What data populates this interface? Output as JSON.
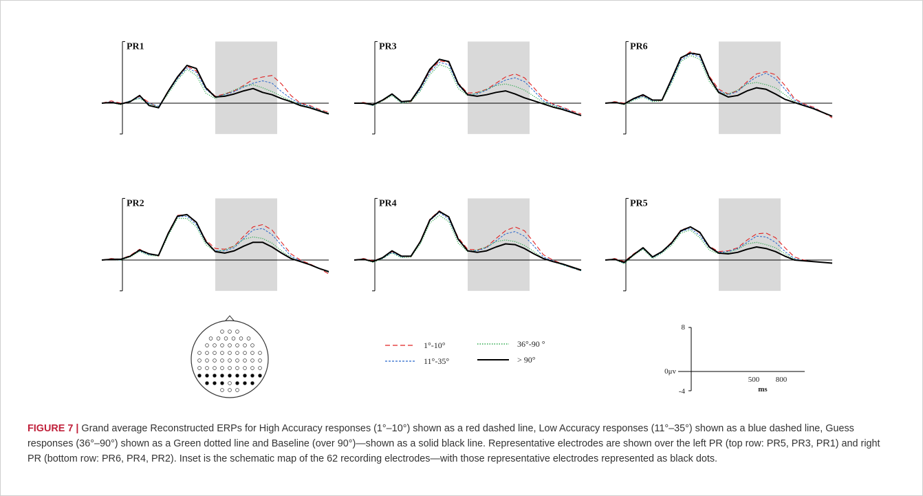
{
  "figure": {
    "label": "FIGURE 7",
    "separator": " | ",
    "caption": "Grand average Reconstructed ERPs for High Accuracy responses (1°–10°) shown as a red dashed line, Low Accuracy responses (11°–35°) shown as a blue dashed line, Guess responses (36°–90°) shown as a Green dotted line and Baseline (over 90°)—shown as a solid black line. Representative electrodes are shown over the left PR (top row: PR5, PR3, PR1) and right PR (bottom row: PR6, PR4, PR2). Inset is the schematic map of the 62 recording electrodes—with those representative electrodes represented as black dots."
  },
  "colors": {
    "high": "#e02020",
    "low": "#2563c9",
    "guess": "#2aa84a",
    "baseline": "#000000",
    "shade": "#d9d9d9",
    "caption_label": "#c0213b"
  },
  "legend": [
    {
      "label": "1°-10°",
      "series": "high",
      "style": "dashed-red"
    },
    {
      "label": "36°-90 °",
      "series": "guess",
      "style": "dotted-green"
    },
    {
      "label": "11°-35°",
      "series": "low",
      "style": "dashed-blue"
    },
    {
      "label": "> 90°",
      "series": "baseline",
      "style": "solid-black"
    }
  ],
  "scale_inset": {
    "y_top": "8",
    "y_zero": "0μv",
    "y_bottom": "-4",
    "x_ticks": [
      "500",
      "800"
    ],
    "x_unit": "ms"
  },
  "head_map": {
    "total_electrodes": 62,
    "representative_electrodes": "black dots"
  },
  "chart_data": [
    {
      "type": "line",
      "title": "PR1",
      "xlim": [
        -100,
        1000
      ],
      "ylim": [
        -4,
        8
      ],
      "shaded_window": [
        450,
        750
      ],
      "series": [
        {
          "key": "high",
          "amps": [
            0,
            0.3,
            0,
            0.2,
            0.9,
            0.1,
            -0.6,
            1.6,
            3.3,
            4.8,
            4.2,
            2.1,
            0.9,
            1.2,
            1.6,
            2.3,
            3.1,
            3.4,
            3.6,
            2.5,
            1.0,
            0,
            -0.3,
            -0.8,
            -1.2
          ]
        },
        {
          "key": "low",
          "amps": [
            0,
            0.2,
            -0.1,
            0.3,
            0.7,
            0.0,
            -0.4,
            1.4,
            3.2,
            4.6,
            4.0,
            1.8,
            0.8,
            1.1,
            1.5,
            2.1,
            2.6,
            2.9,
            2.6,
            1.5,
            0.6,
            -0.1,
            -0.4,
            -0.9,
            -1.3
          ]
        },
        {
          "key": "guess",
          "amps": [
            0,
            0.1,
            -0.2,
            0.3,
            0.6,
            -0.1,
            -0.5,
            1.2,
            3.0,
            4.4,
            3.6,
            1.3,
            0.6,
            1.2,
            1.7,
            2.2,
            2.4,
            2.0,
            1.5,
            0.9,
            0.3,
            -0.2,
            -0.5,
            -0.9,
            -1.3
          ]
        },
        {
          "key": "baseline",
          "amps": [
            0,
            0.1,
            -0.1,
            0.2,
            1.0,
            -0.3,
            -0.6,
            1.5,
            3.4,
            4.9,
            4.5,
            2.0,
            0.8,
            0.9,
            1.2,
            1.6,
            1.9,
            1.4,
            1.1,
            0.6,
            0.2,
            -0.3,
            -0.6,
            -1.0,
            -1.4
          ]
        }
      ]
    },
    {
      "type": "line",
      "title": "PR3",
      "xlim": [
        -100,
        1000
      ],
      "ylim": [
        -4,
        8
      ],
      "shaded_window": [
        450,
        750
      ],
      "series": [
        {
          "key": "high",
          "amps": [
            0,
            0.1,
            -0.2,
            0.3,
            1.2,
            0.2,
            0.2,
            2.0,
            4.2,
            5.5,
            5.3,
            2.6,
            1.3,
            1.4,
            1.8,
            2.6,
            3.4,
            3.8,
            3.3,
            2.0,
            0.6,
            -0.1,
            -0.5,
            -1.0,
            -1.4
          ]
        },
        {
          "key": "low",
          "amps": [
            0,
            0,
            -0.3,
            0.4,
            1.1,
            0.1,
            0.3,
            1.8,
            4.0,
            5.3,
            5.0,
            2.3,
            1.1,
            1.2,
            1.7,
            2.4,
            3.0,
            3.3,
            2.8,
            1.6,
            0.3,
            -0.2,
            -0.6,
            -1.1,
            -1.6
          ]
        },
        {
          "key": "guess",
          "amps": [
            0,
            0,
            -0.3,
            0.3,
            1.0,
            0.0,
            0.2,
            1.6,
            3.7,
            5.0,
            4.6,
            1.9,
            1.0,
            1.3,
            1.8,
            2.3,
            2.5,
            2.2,
            1.7,
            0.9,
            0.1,
            -0.3,
            -0.7,
            -1.2,
            -1.6
          ]
        },
        {
          "key": "baseline",
          "amps": [
            0,
            0,
            -0.2,
            0.4,
            1.2,
            0.2,
            0.3,
            2.1,
            4.4,
            5.7,
            5.4,
            2.5,
            1.1,
            0.9,
            1.1,
            1.4,
            1.6,
            1.2,
            0.7,
            0.3,
            -0.1,
            -0.5,
            -0.8,
            -1.2,
            -1.6
          ]
        }
      ]
    },
    {
      "type": "line",
      "title": "PR6",
      "xlim": [
        -100,
        1000
      ],
      "ylim": [
        -4,
        8
      ],
      "shaded_window": [
        450,
        750
      ],
      "series": [
        {
          "key": "high",
          "amps": [
            0,
            0.2,
            0,
            0.6,
            1.0,
            0.4,
            0.3,
            3.0,
            5.8,
            6.7,
            6.2,
            3.5,
            1.8,
            1.2,
            1.6,
            2.8,
            3.8,
            4.1,
            3.7,
            2.3,
            0.6,
            -0.1,
            -0.5,
            -1.2,
            -1.9
          ]
        },
        {
          "key": "low",
          "amps": [
            0,
            0.1,
            -0.1,
            0.5,
            0.9,
            0.3,
            0.4,
            2.8,
            5.6,
            6.4,
            6.0,
            3.2,
            1.6,
            1.1,
            1.5,
            2.6,
            3.4,
            3.9,
            3.2,
            1.8,
            0.4,
            -0.2,
            -0.6,
            -1.2,
            -1.7
          ]
        },
        {
          "key": "guess",
          "amps": [
            0,
            0.1,
            -0.2,
            0.4,
            0.8,
            0.2,
            0.3,
            2.6,
            5.4,
            6.2,
            5.7,
            2.8,
            1.3,
            1.2,
            1.7,
            2.5,
            2.7,
            2.4,
            2.0,
            1.1,
            0.2,
            -0.3,
            -0.7,
            -1.2,
            -1.7
          ]
        },
        {
          "key": "baseline",
          "amps": [
            0,
            0.1,
            -0.1,
            0.6,
            1.1,
            0.4,
            0.4,
            3.1,
            5.9,
            6.5,
            6.3,
            3.3,
            1.4,
            0.8,
            1.0,
            1.6,
            2.0,
            1.8,
            1.2,
            0.5,
            0.1,
            -0.3,
            -0.7,
            -1.2,
            -1.7
          ]
        }
      ]
    },
    {
      "type": "line",
      "title": "PR2",
      "xlim": [
        -100,
        1000
      ],
      "ylim": [
        -4,
        8
      ],
      "shaded_window": [
        450,
        750
      ],
      "series": [
        {
          "key": "high",
          "amps": [
            0,
            0.2,
            0.1,
            0.6,
            1.4,
            0.8,
            0.5,
            3.5,
            5.8,
            5.9,
            4.8,
            2.6,
            1.5,
            1.4,
            1.8,
            3.1,
            4.3,
            4.6,
            3.9,
            2.3,
            0.8,
            0,
            -0.5,
            -1.1,
            -1.8
          ]
        },
        {
          "key": "low",
          "amps": [
            0,
            0.1,
            0,
            0.5,
            1.2,
            0.7,
            0.6,
            3.3,
            5.6,
            5.7,
            4.6,
            2.3,
            1.2,
            1.2,
            1.6,
            2.8,
            3.9,
            4.1,
            3.3,
            1.9,
            0.5,
            -0.1,
            -0.6,
            -1.1,
            -1.6
          ]
        },
        {
          "key": "guess",
          "amps": [
            0,
            0.1,
            0,
            0.4,
            1.1,
            0.6,
            0.5,
            3.1,
            5.4,
            5.4,
            4.3,
            2.0,
            1.1,
            1.3,
            1.8,
            2.7,
            3.0,
            2.8,
            2.2,
            1.2,
            0.3,
            -0.2,
            -0.6,
            -1.1,
            -1.6
          ]
        },
        {
          "key": "baseline",
          "amps": [
            0,
            0.1,
            0.1,
            0.5,
            1.3,
            0.8,
            0.6,
            3.4,
            5.7,
            5.9,
            4.9,
            2.4,
            1.1,
            0.9,
            1.2,
            1.8,
            2.3,
            2.3,
            1.7,
            0.9,
            0.2,
            -0.2,
            -0.6,
            -1.1,
            -1.5
          ]
        }
      ]
    },
    {
      "type": "line",
      "title": "PR4",
      "xlim": [
        -100,
        1000
      ],
      "ylim": [
        -4,
        8
      ],
      "shaded_window": [
        450,
        750
      ],
      "series": [
        {
          "key": "high",
          "amps": [
            0,
            0.2,
            -0.1,
            0.3,
            1.1,
            0.5,
            0.4,
            2.5,
            5.3,
            6.4,
            5.5,
            2.9,
            1.4,
            1.3,
            1.7,
            2.8,
            3.8,
            4.3,
            3.8,
            2.3,
            0.7,
            0,
            -0.5,
            -1.0,
            -1.4
          ]
        },
        {
          "key": "low",
          "amps": [
            0,
            0.1,
            -0.2,
            0.2,
            1.0,
            0.4,
            0.5,
            2.3,
            5.1,
            6.2,
            5.3,
            2.6,
            1.2,
            1.2,
            1.6,
            2.5,
            3.4,
            3.7,
            3.1,
            1.8,
            0.4,
            -0.1,
            -0.6,
            -1.0,
            -1.4
          ]
        },
        {
          "key": "guess",
          "amps": [
            0,
            0.1,
            -0.3,
            0.2,
            0.9,
            0.3,
            0.4,
            2.1,
            4.8,
            5.8,
            5.0,
            2.2,
            1.1,
            1.3,
            1.7,
            2.4,
            2.6,
            2.4,
            1.9,
            1.1,
            0.2,
            -0.2,
            -0.6,
            -1.0,
            -1.4
          ]
        },
        {
          "key": "baseline",
          "amps": [
            0,
            0.1,
            -0.2,
            0.3,
            1.2,
            0.5,
            0.5,
            2.4,
            5.2,
            6.3,
            5.6,
            2.7,
            1.2,
            1.0,
            1.2,
            1.7,
            2.1,
            2.0,
            1.5,
            0.8,
            0.2,
            -0.2,
            -0.5,
            -0.9,
            -1.3
          ]
        }
      ]
    },
    {
      "type": "line",
      "title": "PR5",
      "xlim": [
        -100,
        1000
      ],
      "ylim": [
        -4,
        8
      ],
      "shaded_window": [
        450,
        750
      ],
      "series": [
        {
          "key": "high",
          "amps": [
            0,
            0.2,
            -0.2,
            0.8,
            1.6,
            0.4,
            1.1,
            2.3,
            3.9,
            4.3,
            3.5,
            1.8,
            1.1,
            1.2,
            1.6,
            2.6,
            3.4,
            3.5,
            2.9,
            1.6,
            0.4,
            0,
            -0.2,
            -0.3,
            -0.4
          ]
        },
        {
          "key": "low",
          "amps": [
            0,
            0.1,
            -0.4,
            0.7,
            1.5,
            0.3,
            1.0,
            2.1,
            3.7,
            4.1,
            3.2,
            1.6,
            1.0,
            1.1,
            1.5,
            2.3,
            3.1,
            3.0,
            2.3,
            1.1,
            0.2,
            -0.1,
            -0.2,
            -0.3,
            -0.4
          ]
        },
        {
          "key": "guess",
          "amps": [
            0,
            0.1,
            -0.5,
            0.6,
            1.4,
            0.2,
            0.9,
            1.9,
            3.5,
            3.9,
            2.9,
            1.3,
            0.8,
            1.0,
            1.4,
            2.1,
            2.3,
            2.0,
            1.6,
            0.8,
            0.1,
            -0.1,
            -0.2,
            -0.3,
            -0.4
          ]
        },
        {
          "key": "baseline",
          "amps": [
            0,
            0.1,
            -0.3,
            0.7,
            1.6,
            0.4,
            1.1,
            2.2,
            3.8,
            4.3,
            3.6,
            1.7,
            0.9,
            0.8,
            1.0,
            1.4,
            1.7,
            1.5,
            1.1,
            0.5,
            0,
            -0.1,
            -0.2,
            -0.3,
            -0.4
          ]
        }
      ]
    }
  ]
}
